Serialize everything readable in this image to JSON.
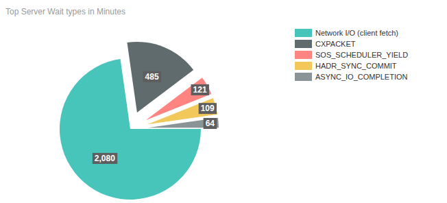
{
  "chart_data": {
    "type": "pie",
    "title": "Top Server Wait types in Minutes",
    "categories": [
      "Network I/O (client fetch)",
      "CXPACKET",
      "SOS_SCHEDULER_YIELD",
      "HADR_SYNC_COMMIT",
      "ASYNC_IO_COMPLETION"
    ],
    "values": [
      2080,
      485,
      121,
      109,
      64
    ],
    "value_labels": [
      "2,080",
      "485",
      "121",
      "109",
      "64"
    ],
    "colors": [
      "#48c5bb",
      "#5f6b6d",
      "#fd8480",
      "#f2c85b",
      "#8a9496"
    ],
    "data_labels": true,
    "legend": "right"
  }
}
